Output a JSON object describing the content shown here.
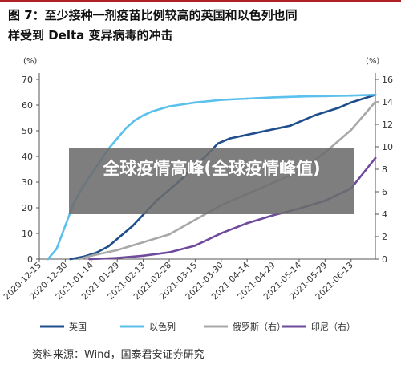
{
  "figure": {
    "title_line1": "图 7：至少接种一剂疫苗比例较高的英国和以色列也同",
    "title_line2": "样受到 Delta 变异病毒的冲击",
    "source": "资料来源：Wind，国泰君安证券研究"
  },
  "overlay": {
    "text": "全球疫情高峰(全球疫情峰值)"
  },
  "colors": {
    "uk": "#1f4e8c",
    "israel": "#5bc0eb",
    "russia": "#a8a8a8",
    "indonesia": "#6f4a9c",
    "title_rule": "#b01f24"
  },
  "chart_data": {
    "type": "line",
    "left_axis": {
      "unit_label": "(%)",
      "ylim": [
        0,
        70
      ],
      "ticks": [
        "0",
        "10",
        "20",
        "30",
        "40",
        "50",
        "60",
        "70"
      ]
    },
    "right_axis": {
      "unit_label": "(%)",
      "ylim": [
        0,
        16
      ],
      "ticks": [
        "0",
        "2",
        "4",
        "6",
        "8",
        "10",
        "12",
        "14",
        "16"
      ]
    },
    "x_range": [
      "2020-12-15",
      "2021-06-27"
    ],
    "x_ticks": [
      "2020-12-15",
      "2020-12-30",
      "2021-01-14",
      "2021-01-29",
      "2021-02-13",
      "2021-02-28",
      "2021-03-15",
      "2021-03-30",
      "2021-04-14",
      "2021-04-29",
      "2021-05-14",
      "2021-05-29",
      "2021-06-13"
    ],
    "grid": false,
    "legend_position": "bottom",
    "series": [
      {
        "name": "英国",
        "axis": "left",
        "color": "#1f4e8c",
        "points": [
          [
            "2021-01-02",
            0
          ],
          [
            "2021-01-10",
            1
          ],
          [
            "2021-01-17",
            2.5
          ],
          [
            "2021-01-24",
            5
          ],
          [
            "2021-01-31",
            9
          ],
          [
            "2021-02-07",
            13
          ],
          [
            "2021-02-14",
            18
          ],
          [
            "2021-02-21",
            23
          ],
          [
            "2021-02-28",
            27
          ],
          [
            "2021-03-07",
            31
          ],
          [
            "2021-03-14",
            36
          ],
          [
            "2021-03-21",
            40
          ],
          [
            "2021-03-28",
            45
          ],
          [
            "2021-04-04",
            47
          ],
          [
            "2021-04-11",
            48
          ],
          [
            "2021-04-18",
            49
          ],
          [
            "2021-04-25",
            50
          ],
          [
            "2021-05-02",
            51
          ],
          [
            "2021-05-09",
            52
          ],
          [
            "2021-05-16",
            54
          ],
          [
            "2021-05-23",
            56
          ],
          [
            "2021-05-30",
            57.5
          ],
          [
            "2021-06-06",
            59
          ],
          [
            "2021-06-13",
            61
          ],
          [
            "2021-06-20",
            62.5
          ],
          [
            "2021-06-27",
            64
          ]
        ]
      },
      {
        "name": "以色列",
        "axis": "left",
        "color": "#5bc0eb",
        "points": [
          [
            "2020-12-20",
            0
          ],
          [
            "2020-12-25",
            4
          ],
          [
            "2020-12-30",
            13
          ],
          [
            "2021-01-04",
            22
          ],
          [
            "2021-01-09",
            28
          ],
          [
            "2021-01-14",
            33
          ],
          [
            "2021-01-19",
            38
          ],
          [
            "2021-01-24",
            43
          ],
          [
            "2021-01-29",
            47
          ],
          [
            "2021-02-03",
            51
          ],
          [
            "2021-02-08",
            54
          ],
          [
            "2021-02-13",
            56
          ],
          [
            "2021-02-18",
            57.5
          ],
          [
            "2021-02-23",
            58.5
          ],
          [
            "2021-02-28",
            59.5
          ],
          [
            "2021-03-15",
            61
          ],
          [
            "2021-03-30",
            62
          ],
          [
            "2021-04-14",
            62.5
          ],
          [
            "2021-04-29",
            63
          ],
          [
            "2021-05-14",
            63.3
          ],
          [
            "2021-05-29",
            63.5
          ],
          [
            "2021-06-13",
            63.7
          ],
          [
            "2021-06-27",
            64
          ]
        ]
      },
      {
        "name": "俄罗斯（右）",
        "axis": "right",
        "color": "#a8a8a8",
        "points": [
          [
            "2021-01-07",
            0
          ],
          [
            "2021-01-14",
            0.3
          ],
          [
            "2021-01-29",
            0.8
          ],
          [
            "2021-02-13",
            1.5
          ],
          [
            "2021-02-28",
            2.2
          ],
          [
            "2021-03-15",
            3.5
          ],
          [
            "2021-03-30",
            4.8
          ],
          [
            "2021-04-14",
            5.8
          ],
          [
            "2021-04-29",
            6.8
          ],
          [
            "2021-05-14",
            7.8
          ],
          [
            "2021-05-29",
            9.5
          ],
          [
            "2021-06-13",
            11.5
          ],
          [
            "2021-06-27",
            14
          ]
        ]
      },
      {
        "name": "印尼（右）",
        "axis": "right",
        "color": "#6f4a9c",
        "points": [
          [
            "2021-01-13",
            0
          ],
          [
            "2021-01-29",
            0.1
          ],
          [
            "2021-02-13",
            0.3
          ],
          [
            "2021-02-28",
            0.6
          ],
          [
            "2021-03-15",
            1.2
          ],
          [
            "2021-03-30",
            2.3
          ],
          [
            "2021-04-14",
            3.2
          ],
          [
            "2021-04-29",
            3.9
          ],
          [
            "2021-05-14",
            4.5
          ],
          [
            "2021-05-29",
            5.2
          ],
          [
            "2021-06-13",
            6.3
          ],
          [
            "2021-06-27",
            9
          ]
        ]
      }
    ]
  }
}
